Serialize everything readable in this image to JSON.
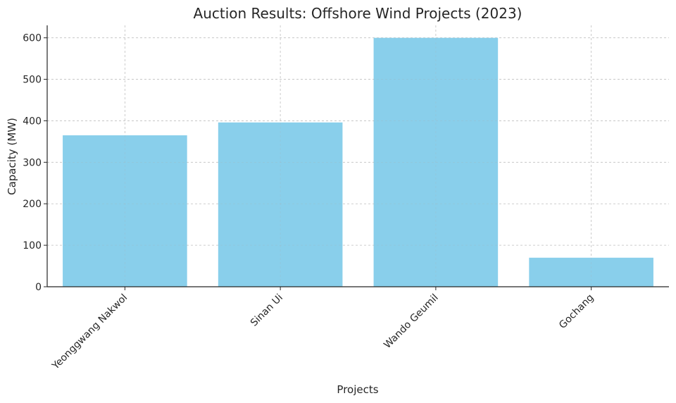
{
  "chart_data": {
    "type": "bar",
    "title": "Auction Results: Offshore Wind Projects (2023)",
    "xlabel": "Projects",
    "ylabel": "Capacity (MW)",
    "categories": [
      "Yeonggwang Nakwol",
      "Sinan Ui",
      "Wando Geumil",
      "Gochang"
    ],
    "values": [
      365,
      396,
      600,
      70
    ],
    "ylim": [
      0,
      630
    ],
    "yticks": [
      0,
      100,
      200,
      300,
      400,
      500,
      600
    ],
    "grid": true,
    "bar_color": "#87CEEB"
  }
}
